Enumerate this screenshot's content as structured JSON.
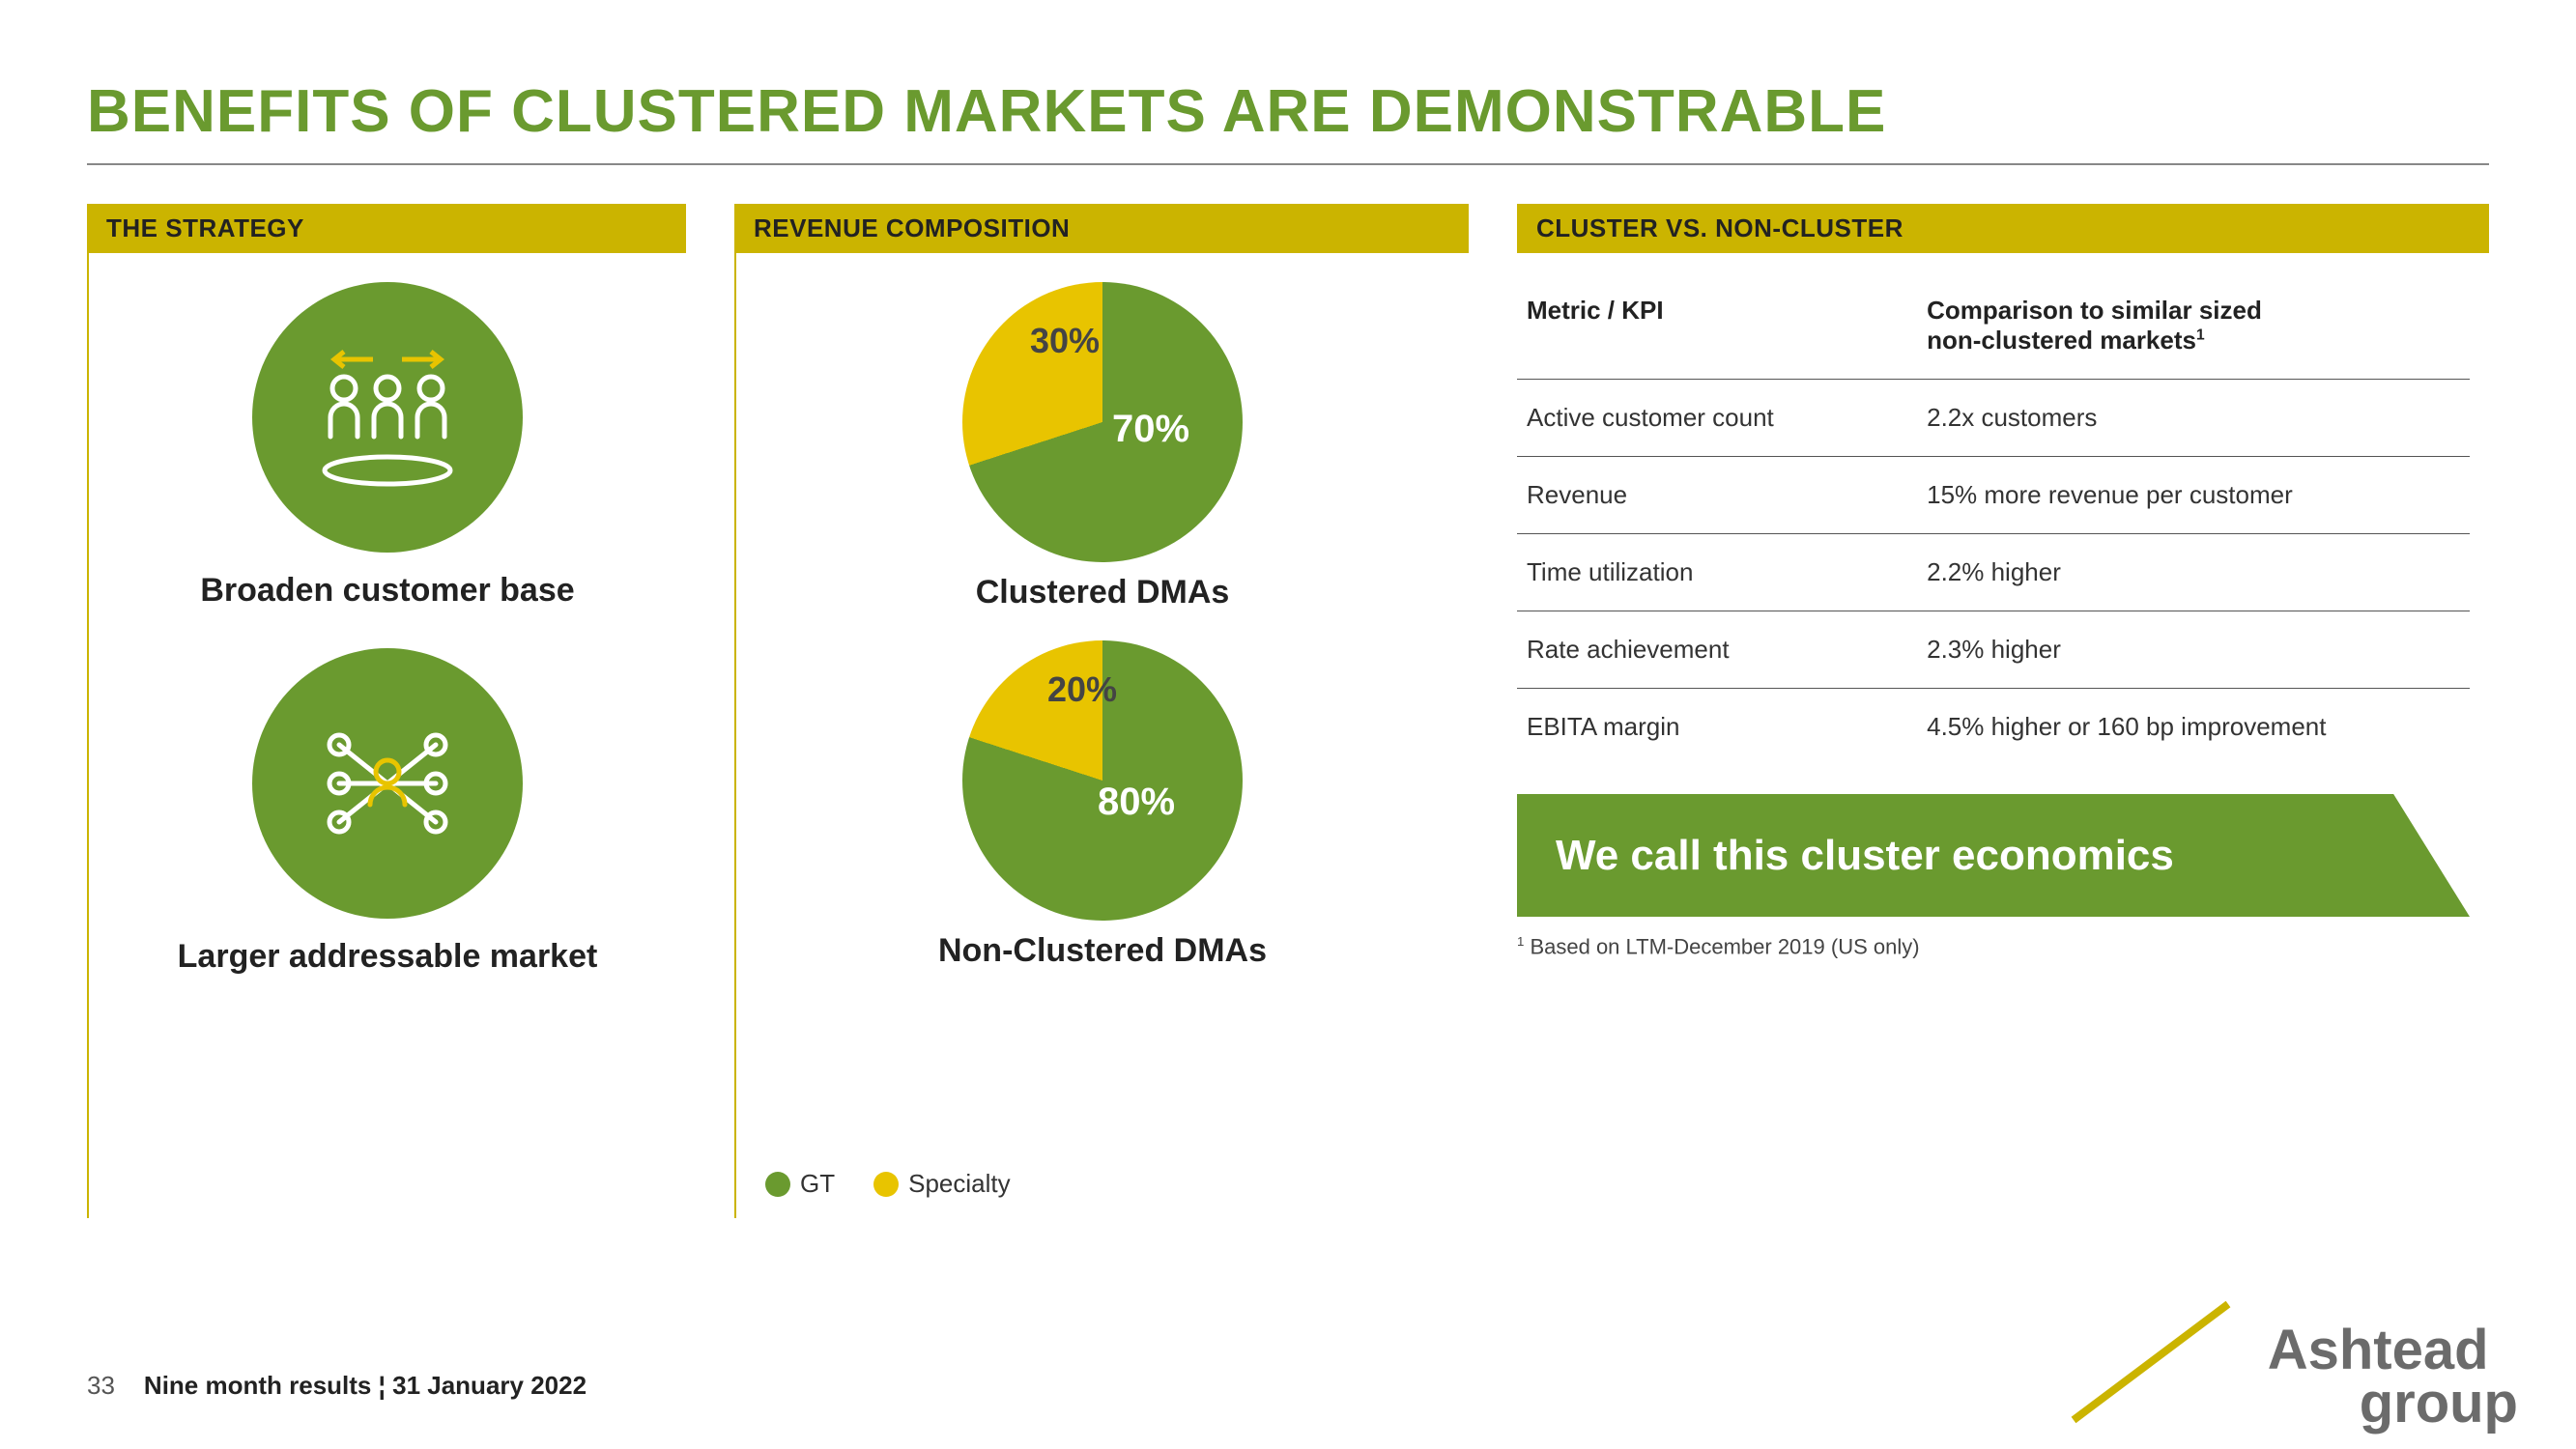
{
  "colors": {
    "green": "#6a9a2f",
    "yellow": "#cbb400",
    "accent_yellow": "#e8c400",
    "white": "#ffffff",
    "text": "#222222",
    "logo_grey": "#6b6b6b"
  },
  "title": "BENEFITS OF CLUSTERED MARKETS ARE DEMONSTRABLE",
  "strategy": {
    "header": "THE STRATEGY",
    "items": [
      {
        "label": "Broaden customer base",
        "icon": "people-exchange"
      },
      {
        "label": "Larger addressable market",
        "icon": "network-person"
      }
    ]
  },
  "revenue": {
    "header": "REVENUE COMPOSITION",
    "charts": [
      {
        "label": "Clustered DMAs",
        "type": "pie",
        "slices": [
          {
            "name": "GT",
            "value": 70,
            "color": "#6a9a2f",
            "label": "70%"
          },
          {
            "name": "Specialty",
            "value": 30,
            "color": "#e8c400",
            "label": "30%"
          }
        ]
      },
      {
        "label": "Non-Clustered DMAs",
        "type": "pie",
        "slices": [
          {
            "name": "GT",
            "value": 80,
            "color": "#6a9a2f",
            "label": "80%"
          },
          {
            "name": "Specialty",
            "value": 20,
            "color": "#e8c400",
            "label": "20%"
          }
        ]
      }
    ],
    "legend": [
      {
        "label": "GT",
        "color": "#6a9a2f"
      },
      {
        "label": "Specialty",
        "color": "#e8c400"
      }
    ]
  },
  "comparison": {
    "header": "CLUSTER VS. NON-CLUSTER",
    "col1_header": "Metric / KPI",
    "col2_header_line1": "Comparison to similar sized",
    "col2_header_line2": "non-clustered markets",
    "col2_header_sup": "1",
    "rows": [
      {
        "metric": "Active customer count",
        "value": "2.2x customers"
      },
      {
        "metric": "Revenue",
        "value": "15% more revenue per customer"
      },
      {
        "metric": "Time utilization",
        "value": "2.2% higher"
      },
      {
        "metric": "Rate achievement",
        "value": "2.3% higher"
      },
      {
        "metric": "EBITA margin",
        "value": "4.5% higher or 160 bp improvement"
      }
    ],
    "callout": "We call this cluster economics",
    "footnote_sup": "1",
    "footnote": " Based on LTM-December 2019 (US only)"
  },
  "footer": {
    "page": "33",
    "text": "Nine month results ¦ 31 January 2022"
  },
  "logo": {
    "line1": "Ashtead",
    "line2": "group"
  }
}
